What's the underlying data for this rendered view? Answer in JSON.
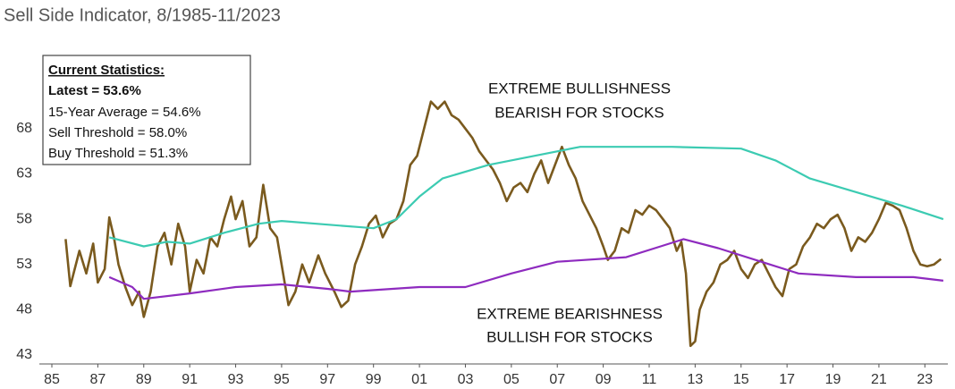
{
  "chart_data": {
    "type": "line",
    "title": "Sell Side Indicator, 8/1985-11/2023",
    "stats": [
      "Current Statistics:",
      "Latest = 53.6%",
      "15-Year Average = 54.6%",
      "Sell Threshold = 58.0%",
      "Buy Threshold = 51.3%"
    ],
    "annotations": [
      "EXTREME BULLISHNESS",
      "BEARISH FOR STOCKS",
      "EXTREME BEARISHNESS",
      "BULLISH FOR STOCKS"
    ],
    "xlim": [
      1985,
      2024
    ],
    "xticks": [
      {
        "value": 1985,
        "label": "85"
      },
      {
        "value": 1987,
        "label": "87"
      },
      {
        "value": 1989,
        "label": "89"
      },
      {
        "value": 1991,
        "label": "91"
      },
      {
        "value": 1993,
        "label": "93"
      },
      {
        "value": 1995,
        "label": "95"
      },
      {
        "value": 1997,
        "label": "97"
      },
      {
        "value": 1999,
        "label": "99"
      },
      {
        "value": 2001,
        "label": "01"
      },
      {
        "value": 2003,
        "label": "03"
      },
      {
        "value": 2005,
        "label": "05"
      },
      {
        "value": 2007,
        "label": "07"
      },
      {
        "value": 2009,
        "label": "09"
      },
      {
        "value": 2011,
        "label": "11"
      },
      {
        "value": 2013,
        "label": "13"
      },
      {
        "value": 2015,
        "label": "15"
      },
      {
        "value": 2017,
        "label": "17"
      },
      {
        "value": 2019,
        "label": "19"
      },
      {
        "value": 2021,
        "label": "21"
      },
      {
        "value": 2023,
        "label": "23"
      }
    ],
    "ylim": [
      42,
      76
    ],
    "yticks": [
      43,
      48,
      53,
      58,
      63,
      68
    ],
    "series": [
      {
        "color": "#7a5a1e",
        "x": [
          1985.6,
          1985.8,
          1986.2,
          1986.5,
          1986.8,
          1987.0,
          1987.3,
          1987.5,
          1987.7,
          1987.9,
          1988.2,
          1988.5,
          1988.8,
          1989.0,
          1989.3,
          1989.6,
          1989.9,
          1990.2,
          1990.5,
          1990.8,
          1991.0,
          1991.3,
          1991.6,
          1991.9,
          1992.2,
          1992.5,
          1992.8,
          1993.0,
          1993.3,
          1993.6,
          1993.9,
          1994.2,
          1994.5,
          1994.8,
          1995.0,
          1995.3,
          1995.6,
          1995.9,
          1996.2,
          1996.6,
          1996.9,
          1997.3,
          1997.6,
          1997.9,
          1998.2,
          1998.5,
          1998.8,
          1999.1,
          1999.4,
          1999.7,
          2000.0,
          2000.3,
          2000.6,
          2000.9,
          2001.2,
          2001.5,
          2001.8,
          2002.1,
          2002.4,
          2002.7,
          2003.0,
          2003.3,
          2003.6,
          2003.9,
          2004.2,
          2004.5,
          2004.8,
          2005.1,
          2005.4,
          2005.7,
          2006.0,
          2006.3,
          2006.6,
          2006.9,
          2007.2,
          2007.5,
          2007.8,
          2008.1,
          2008.4,
          2008.7,
          2009.0,
          2009.2,
          2009.5,
          2009.8,
          2010.1,
          2010.4,
          2010.7,
          2011.0,
          2011.3,
          2011.6,
          2011.9,
          2012.2,
          2012.4,
          2012.6,
          2012.8,
          2013.0,
          2013.2,
          2013.5,
          2013.8,
          2014.1,
          2014.4,
          2014.7,
          2015.0,
          2015.3,
          2015.6,
          2015.9,
          2016.2,
          2016.5,
          2016.8,
          2017.1,
          2017.4,
          2017.7,
          2018.0,
          2018.3,
          2018.6,
          2018.9,
          2019.2,
          2019.5,
          2019.8,
          2020.1,
          2020.4,
          2020.7,
          2021.0,
          2021.3,
          2021.6,
          2021.9,
          2022.2,
          2022.5,
          2022.8,
          2023.1,
          2023.4,
          2023.7
        ],
        "values": [
          55.8,
          50.6,
          54.5,
          52,
          55.3,
          51,
          52.5,
          58.2,
          56,
          53,
          50.5,
          48.5,
          50,
          47.2,
          50,
          55,
          56.5,
          53,
          57.5,
          55,
          50,
          53.5,
          52,
          56,
          55,
          58,
          60.5,
          58,
          60,
          55,
          56,
          61.8,
          57,
          56,
          53,
          48.5,
          50,
          53,
          51,
          54,
          52,
          50,
          48.3,
          49,
          53,
          55,
          57.5,
          58.4,
          56,
          57.5,
          58,
          60,
          64,
          65,
          68,
          71,
          70.2,
          71,
          69.5,
          69,
          68,
          67,
          65.5,
          64.5,
          63.5,
          62,
          60,
          61.5,
          62,
          61,
          63,
          64.5,
          62,
          64,
          66,
          64,
          62.5,
          60,
          58.5,
          57,
          55,
          53.5,
          54.5,
          57,
          56.5,
          59,
          58.5,
          59.5,
          59,
          58,
          57,
          54.5,
          55.5,
          52,
          44,
          44.5,
          48,
          50,
          51,
          53,
          53.5,
          54.5,
          52.5,
          51.5,
          53,
          53.5,
          52,
          50.5,
          49.5,
          52.5,
          53,
          55,
          56,
          57.5,
          57,
          58,
          58.5,
          57,
          54.5,
          56,
          55.5,
          56.5,
          58,
          59.8,
          59.5,
          59,
          57,
          54.5,
          53,
          52.8,
          53,
          53.6
        ]
      },
      {
        "color": "#3ccbb2",
        "x": [
          1987.5,
          1989,
          1990,
          1991,
          1992.5,
          1994,
          1995,
          1997,
          1999,
          2000,
          2001,
          2002,
          2004,
          2006,
          2008,
          2012,
          2015,
          2016.5,
          2018,
          2020,
          2022,
          2023.8
        ],
        "values": [
          56,
          55,
          55.5,
          55.3,
          56.5,
          57.5,
          57.8,
          57.4,
          57,
          58,
          60.5,
          62.5,
          64,
          65,
          66,
          66,
          65.8,
          64.5,
          62.5,
          61,
          59.5,
          58
        ]
      },
      {
        "color": "#8e2bbf",
        "x": [
          1987.5,
          1988.5,
          1989,
          1991,
          1993,
          1995,
          1997,
          1998,
          2001,
          2003,
          2005,
          2007,
          2010,
          2011.5,
          2012.5,
          2014,
          2016,
          2017.5,
          2020,
          2022.5,
          2023.8
        ],
        "values": [
          51.6,
          50.5,
          49.2,
          49.8,
          50.5,
          50.8,
          50.3,
          50,
          50.5,
          50.5,
          52,
          53.3,
          53.8,
          55,
          55.8,
          54.8,
          53.2,
          52,
          51.6,
          51.6,
          51.2
        ]
      }
    ]
  }
}
